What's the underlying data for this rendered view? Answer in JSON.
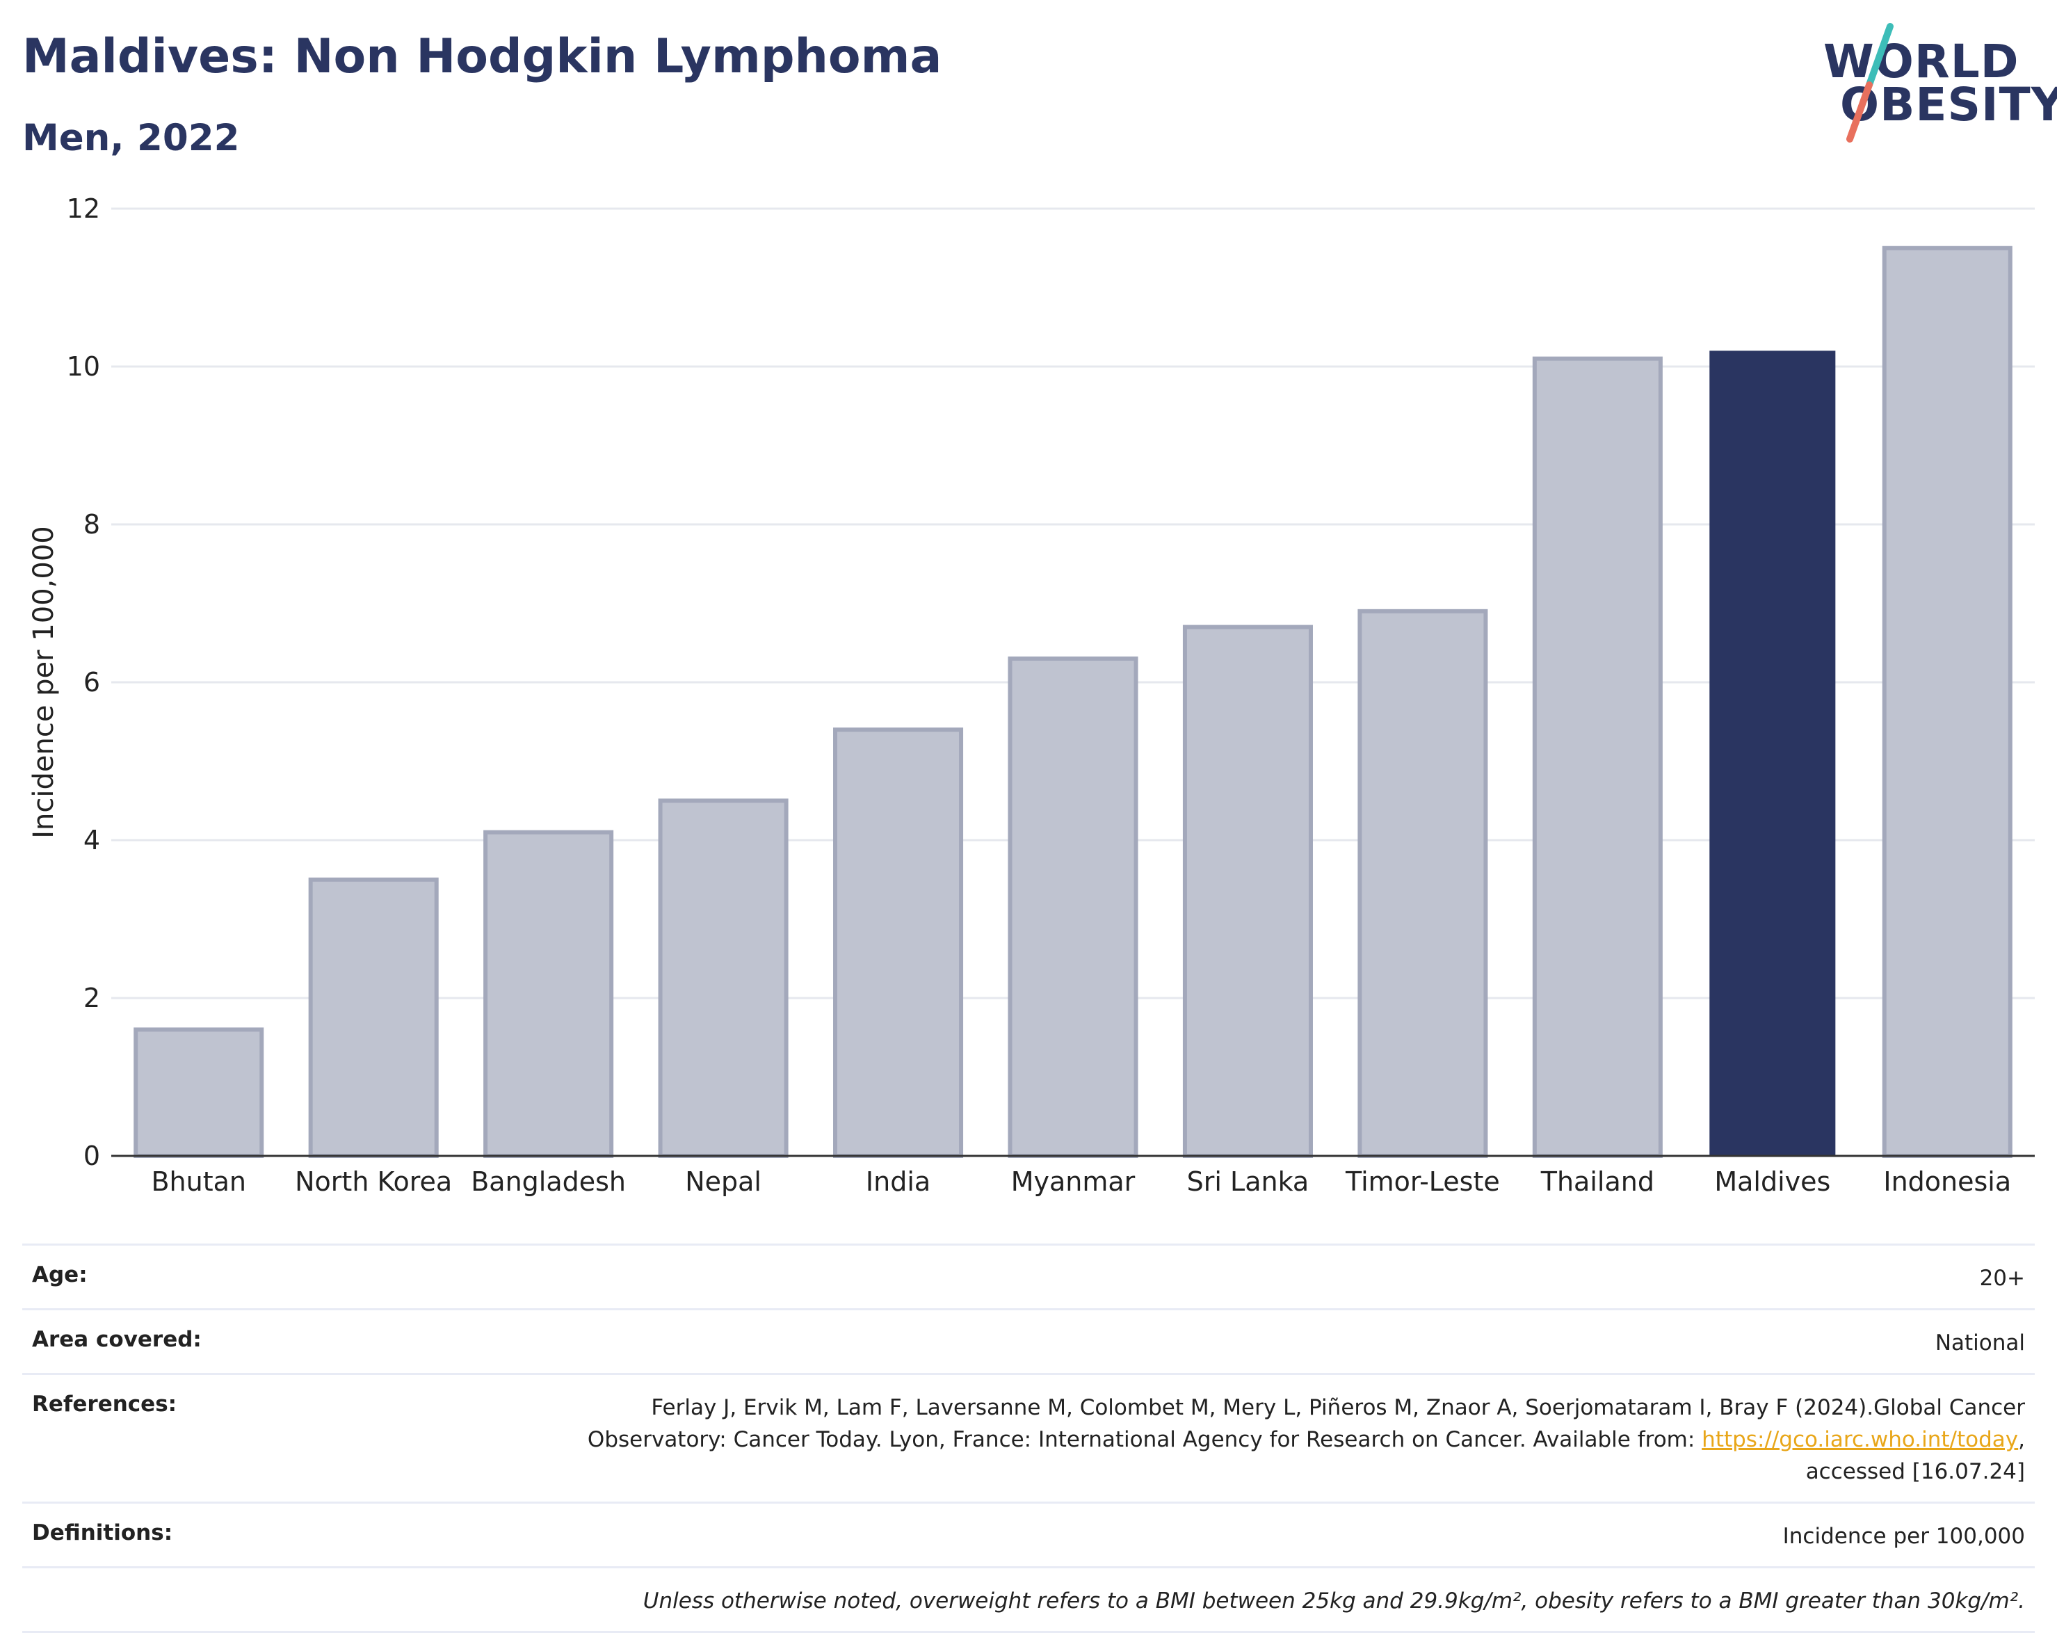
{
  "header": {
    "title": "Maldives: Non Hodgkin Lymphoma",
    "subtitle": "Men, 2022"
  },
  "logo": {
    "line1": "WORLD",
    "line2": "OBESITY",
    "colors": {
      "text": "#2a3561",
      "slash_top": "#3dbdb8",
      "slash_bottom": "#e8705d"
    }
  },
  "chart_data": {
    "type": "bar",
    "categories": [
      "Bhutan",
      "North Korea",
      "Bangladesh",
      "Nepal",
      "India",
      "Myanmar",
      "Sri Lanka",
      "Timor-Leste",
      "Thailand",
      "Maldives",
      "Indonesia"
    ],
    "values": [
      1.6,
      3.5,
      4.1,
      4.5,
      5.4,
      6.3,
      6.7,
      6.9,
      10.1,
      10.2,
      11.5
    ],
    "highlight": "Maldives",
    "ylabel": "Incidence per 100,000",
    "xlabel": "",
    "ylim": [
      0,
      12
    ],
    "yticks": [
      "0",
      "2",
      "4",
      "6",
      "8",
      "10",
      "12"
    ],
    "grid": true,
    "colors": {
      "bar": "#bfc3d0",
      "bar_border": "#a3a8bb",
      "highlight": "#2a3561",
      "grid": "#e6e8ee",
      "axis": "#333333"
    }
  },
  "info": {
    "age_label": "Age:",
    "age_value": "20+",
    "area_label": "Area covered:",
    "area_value": "National",
    "references_label": "References:",
    "references_line1": "Ferlay J, Ervik M, Lam F, Laversanne M, Colombet M, Mery L, Piñeros M, Znaor A, Soerjomataram I, Bray F (2024).Global Cancer",
    "references_line2_pre": "Observatory: Cancer Today. Lyon, France: International Agency for Research on Cancer. Available from: ",
    "references_link": "https://gco.iarc.who.int/today",
    "references_line2_post": ",",
    "references_line3": "accessed [16.07.24]",
    "definitions_label": "Definitions:",
    "definitions_value": "Incidence per 100,000",
    "note": "Unless otherwise noted, overweight refers to a BMI between 25kg and 29.9kg/m², obesity refers to a BMI greater than 30kg/m²."
  }
}
